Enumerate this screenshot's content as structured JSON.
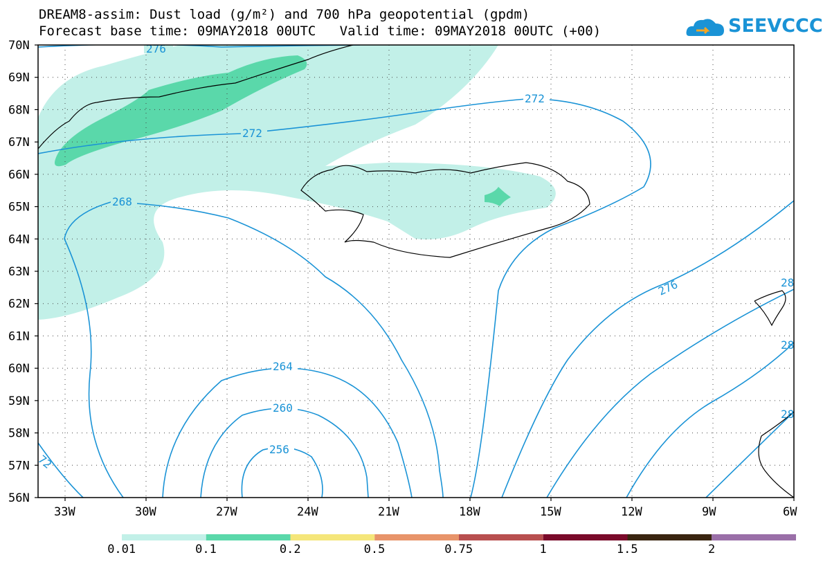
{
  "title": {
    "line1": "DREAM8-assim: Dust load (g/m²) and 700 hPa geopotential (gpdm)",
    "line2": "Forecast base time: 09MAY2018 00UTC   Valid time: 09MAY2018 00UTC (+00)"
  },
  "logo": {
    "text": "SEEVCCC",
    "icon": "cloud-icon"
  },
  "axes": {
    "lat_labels": [
      "70N",
      "69N",
      "68N",
      "67N",
      "66N",
      "65N",
      "64N",
      "63N",
      "62N",
      "61N",
      "60N",
      "59N",
      "58N",
      "57N",
      "56N"
    ],
    "lon_labels": [
      "33W",
      "30W",
      "27W",
      "24W",
      "21W",
      "18W",
      "15W",
      "12W",
      "9W",
      "6W"
    ],
    "lat_range": [
      56,
      70
    ],
    "lon_range": [
      -34,
      -6
    ],
    "grid": "dotted"
  },
  "contour_labels": [
    "276",
    "272",
    "272",
    "268",
    "264",
    "260",
    "256",
    "276",
    "72",
    "28",
    "28",
    "28"
  ],
  "legend": {
    "labels": [
      "0.01",
      "0.1",
      "0.2",
      "0.5",
      "0.75",
      "1",
      "1.5",
      "2"
    ],
    "colors": [
      "#c2f0e8",
      "#5ad8aa",
      "#f5e67a",
      "#e8946a",
      "#b84f4f",
      "#7a0a2a",
      "#3a2510",
      "#9a6fa8"
    ]
  },
  "colors": {
    "contour": "#1a93d6",
    "dust_light": "#c2f0e8",
    "dust_mid": "#5ad8aa",
    "coast": "#000000"
  }
}
